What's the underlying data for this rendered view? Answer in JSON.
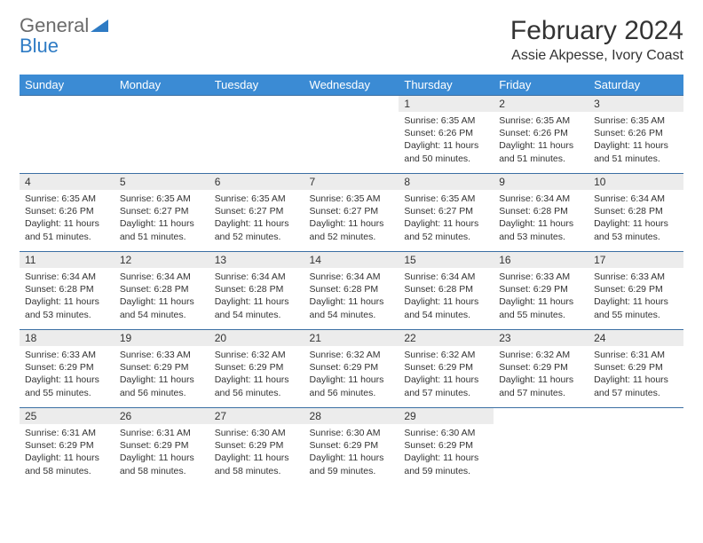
{
  "logo": {
    "text1": "General",
    "text2": "Blue"
  },
  "title": "February 2024",
  "location": "Assie Akpesse, Ivory Coast",
  "header_bg": "#3b8bd4",
  "header_fg": "#ffffff",
  "daynum_bg": "#ececec",
  "border_color": "#3b6fa3",
  "days": [
    "Sunday",
    "Monday",
    "Tuesday",
    "Wednesday",
    "Thursday",
    "Friday",
    "Saturday"
  ],
  "weeks": [
    [
      null,
      null,
      null,
      null,
      {
        "n": "1",
        "sr": "Sunrise: 6:35 AM",
        "ss": "Sunset: 6:26 PM",
        "dl": "Daylight: 11 hours and 50 minutes."
      },
      {
        "n": "2",
        "sr": "Sunrise: 6:35 AM",
        "ss": "Sunset: 6:26 PM",
        "dl": "Daylight: 11 hours and 51 minutes."
      },
      {
        "n": "3",
        "sr": "Sunrise: 6:35 AM",
        "ss": "Sunset: 6:26 PM",
        "dl": "Daylight: 11 hours and 51 minutes."
      }
    ],
    [
      {
        "n": "4",
        "sr": "Sunrise: 6:35 AM",
        "ss": "Sunset: 6:26 PM",
        "dl": "Daylight: 11 hours and 51 minutes."
      },
      {
        "n": "5",
        "sr": "Sunrise: 6:35 AM",
        "ss": "Sunset: 6:27 PM",
        "dl": "Daylight: 11 hours and 51 minutes."
      },
      {
        "n": "6",
        "sr": "Sunrise: 6:35 AM",
        "ss": "Sunset: 6:27 PM",
        "dl": "Daylight: 11 hours and 52 minutes."
      },
      {
        "n": "7",
        "sr": "Sunrise: 6:35 AM",
        "ss": "Sunset: 6:27 PM",
        "dl": "Daylight: 11 hours and 52 minutes."
      },
      {
        "n": "8",
        "sr": "Sunrise: 6:35 AM",
        "ss": "Sunset: 6:27 PM",
        "dl": "Daylight: 11 hours and 52 minutes."
      },
      {
        "n": "9",
        "sr": "Sunrise: 6:34 AM",
        "ss": "Sunset: 6:28 PM",
        "dl": "Daylight: 11 hours and 53 minutes."
      },
      {
        "n": "10",
        "sr": "Sunrise: 6:34 AM",
        "ss": "Sunset: 6:28 PM",
        "dl": "Daylight: 11 hours and 53 minutes."
      }
    ],
    [
      {
        "n": "11",
        "sr": "Sunrise: 6:34 AM",
        "ss": "Sunset: 6:28 PM",
        "dl": "Daylight: 11 hours and 53 minutes."
      },
      {
        "n": "12",
        "sr": "Sunrise: 6:34 AM",
        "ss": "Sunset: 6:28 PM",
        "dl": "Daylight: 11 hours and 54 minutes."
      },
      {
        "n": "13",
        "sr": "Sunrise: 6:34 AM",
        "ss": "Sunset: 6:28 PM",
        "dl": "Daylight: 11 hours and 54 minutes."
      },
      {
        "n": "14",
        "sr": "Sunrise: 6:34 AM",
        "ss": "Sunset: 6:28 PM",
        "dl": "Daylight: 11 hours and 54 minutes."
      },
      {
        "n": "15",
        "sr": "Sunrise: 6:34 AM",
        "ss": "Sunset: 6:28 PM",
        "dl": "Daylight: 11 hours and 54 minutes."
      },
      {
        "n": "16",
        "sr": "Sunrise: 6:33 AM",
        "ss": "Sunset: 6:29 PM",
        "dl": "Daylight: 11 hours and 55 minutes."
      },
      {
        "n": "17",
        "sr": "Sunrise: 6:33 AM",
        "ss": "Sunset: 6:29 PM",
        "dl": "Daylight: 11 hours and 55 minutes."
      }
    ],
    [
      {
        "n": "18",
        "sr": "Sunrise: 6:33 AM",
        "ss": "Sunset: 6:29 PM",
        "dl": "Daylight: 11 hours and 55 minutes."
      },
      {
        "n": "19",
        "sr": "Sunrise: 6:33 AM",
        "ss": "Sunset: 6:29 PM",
        "dl": "Daylight: 11 hours and 56 minutes."
      },
      {
        "n": "20",
        "sr": "Sunrise: 6:32 AM",
        "ss": "Sunset: 6:29 PM",
        "dl": "Daylight: 11 hours and 56 minutes."
      },
      {
        "n": "21",
        "sr": "Sunrise: 6:32 AM",
        "ss": "Sunset: 6:29 PM",
        "dl": "Daylight: 11 hours and 56 minutes."
      },
      {
        "n": "22",
        "sr": "Sunrise: 6:32 AM",
        "ss": "Sunset: 6:29 PM",
        "dl": "Daylight: 11 hours and 57 minutes."
      },
      {
        "n": "23",
        "sr": "Sunrise: 6:32 AM",
        "ss": "Sunset: 6:29 PM",
        "dl": "Daylight: 11 hours and 57 minutes."
      },
      {
        "n": "24",
        "sr": "Sunrise: 6:31 AM",
        "ss": "Sunset: 6:29 PM",
        "dl": "Daylight: 11 hours and 57 minutes."
      }
    ],
    [
      {
        "n": "25",
        "sr": "Sunrise: 6:31 AM",
        "ss": "Sunset: 6:29 PM",
        "dl": "Daylight: 11 hours and 58 minutes."
      },
      {
        "n": "26",
        "sr": "Sunrise: 6:31 AM",
        "ss": "Sunset: 6:29 PM",
        "dl": "Daylight: 11 hours and 58 minutes."
      },
      {
        "n": "27",
        "sr": "Sunrise: 6:30 AM",
        "ss": "Sunset: 6:29 PM",
        "dl": "Daylight: 11 hours and 58 minutes."
      },
      {
        "n": "28",
        "sr": "Sunrise: 6:30 AM",
        "ss": "Sunset: 6:29 PM",
        "dl": "Daylight: 11 hours and 59 minutes."
      },
      {
        "n": "29",
        "sr": "Sunrise: 6:30 AM",
        "ss": "Sunset: 6:29 PM",
        "dl": "Daylight: 11 hours and 59 minutes."
      },
      null,
      null
    ]
  ]
}
